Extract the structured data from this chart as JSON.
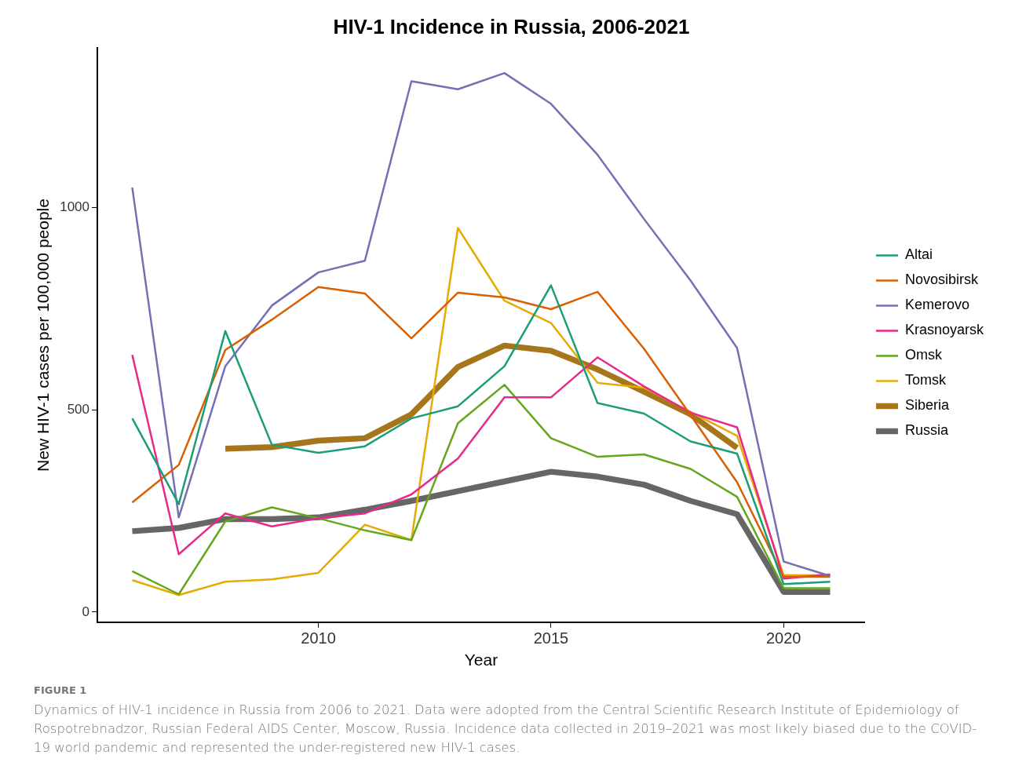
{
  "chart_data": {
    "type": "line",
    "title": "HIV-1 Incidence in Russia, 2006-2021",
    "xlabel": "Year",
    "ylabel": "New HIV-1 cases per 100,000 people",
    "x": [
      2006,
      2007,
      2008,
      2009,
      2010,
      2011,
      2012,
      2013,
      2014,
      2015,
      2016,
      2017,
      2018,
      2019,
      2020,
      2021
    ],
    "xlim": [
      2005.25,
      2021.75
    ],
    "xticks": [
      2010,
      2015,
      2020
    ],
    "ylim": [
      -25,
      1395
    ],
    "yticks": [
      0,
      500,
      1000
    ],
    "grid": false,
    "legend": "right",
    "marker": "none",
    "line_style": "solid",
    "series": [
      {
        "name": "Altai",
        "color": "#1b9e77",
        "values": [
          479,
          267,
          695,
          414,
          394,
          410,
          479,
          509,
          608,
          808,
          517,
          491,
          422,
          392,
          69,
          75
        ]
      },
      {
        "name": "Novosibirsk",
        "color": "#d95f02",
        "values": [
          271,
          364,
          648,
          723,
          804,
          788,
          677,
          790,
          778,
          749,
          792,
          651,
          487,
          321,
          87,
          87
        ]
      },
      {
        "name": "Kemerovo",
        "color": "#7570b3",
        "values": [
          1050,
          234,
          608,
          758,
          840,
          869,
          1313,
          1293,
          1333,
          1257,
          1131,
          972,
          820,
          653,
          125,
          89
        ]
      },
      {
        "name": "Krasnoyarsk",
        "color": "#e7298a",
        "values": [
          636,
          143,
          244,
          212,
          232,
          244,
          291,
          380,
          531,
          531,
          630,
          558,
          493,
          457,
          83,
          93
        ]
      },
      {
        "name": "Omsk",
        "color": "#66a61e",
        "values": [
          101,
          44,
          224,
          259,
          232,
          202,
          178,
          467,
          562,
          430,
          384,
          390,
          354,
          285,
          59,
          59
        ]
      },
      {
        "name": "Tomsk",
        "color": "#e6ab02",
        "values": [
          79,
          42,
          75,
          81,
          97,
          216,
          178,
          950,
          770,
          715,
          567,
          555,
          495,
          436,
          91,
          91
        ]
      },
      {
        "name": "Siberia",
        "color": "#a6761d",
        "values": [
          null,
          null,
          404,
          408,
          424,
          430,
          489,
          606,
          659,
          646,
          600,
          545,
          489,
          406,
          null,
          null
        ]
      },
      {
        "name": "Russia",
        "color": "#666666",
        "values": [
          200,
          208,
          230,
          230,
          234,
          253,
          275,
          299,
          323,
          347,
          335,
          315,
          275,
          242,
          50,
          50
        ]
      }
    ],
    "annotations": [
      "FIGURE 1",
      "Dynamics of HIV-1 incidence in Russia from 2006 to 2021. Data were adopted from the Central Scientific Research Institute of Epidemiology of Rospotrebnadzor, Russian Federal AIDS Center, Moscow, Russia. Incidence data collected in 2019–2021 was most likely biased due to the COVID-19 world pandemic and represented the under-registered new HIV-1 cases."
    ]
  }
}
